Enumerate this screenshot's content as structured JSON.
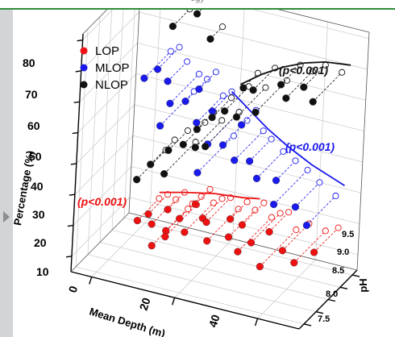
{
  "header": {
    "text": "ogy"
  },
  "chart_data": {
    "type": "scatter",
    "subtype": "3d-scatter-with-projection-lines",
    "axes": {
      "x": {
        "label": "Mean Depth (m)",
        "range": [
          -5,
          50
        ],
        "ticks": [
          "0",
          "20",
          "40"
        ],
        "tick_values": [
          0,
          20,
          40
        ]
      },
      "y": {
        "label": "pH",
        "range": [
          7.3,
          9.7
        ],
        "ticks": [
          "7.5",
          "8.0",
          "8.5",
          "9.0",
          "9.5"
        ],
        "tick_values": [
          7.5,
          8.0,
          8.5,
          9.0,
          9.5
        ]
      },
      "z": {
        "label": "Percentage (%)",
        "range": [
          5,
          82
        ],
        "ticks": [
          "10",
          "20",
          "30",
          "40",
          "50",
          "60",
          "70",
          "80"
        ],
        "tick_values": [
          10,
          20,
          30,
          40,
          50,
          60,
          70,
          80
        ]
      }
    },
    "grid": true,
    "legend": {
      "placement": "top-left",
      "entries": [
        {
          "name": "LOP",
          "color": "#ee1111"
        },
        {
          "name": "MLOP",
          "color": "#1a1aee"
        },
        {
          "name": "NLOP",
          "color": "#111111"
        }
      ]
    },
    "annotations": [
      {
        "text": "(p<0.001)",
        "series": "NLOP",
        "color": "#111111"
      },
      {
        "text": "(p<0.001)",
        "series": "MLOP",
        "color": "#1a1aee"
      },
      {
        "text": "(p<0.001)",
        "series": "LOP",
        "color": "#ee1111"
      }
    ],
    "series": [
      {
        "name": "LOP",
        "color": "#ee1111",
        "points": [
          {
            "x": 2,
            "y": 8.8,
            "z": 12
          },
          {
            "x": 4,
            "y": 8.9,
            "z": 14
          },
          {
            "x": 6,
            "y": 8.7,
            "z": 13
          },
          {
            "x": 8,
            "y": 9.0,
            "z": 16
          },
          {
            "x": 10,
            "y": 8.6,
            "z": 13
          },
          {
            "x": 12,
            "y": 8.8,
            "z": 16
          },
          {
            "x": 14,
            "y": 9.1,
            "z": 19
          },
          {
            "x": 15,
            "y": 8.5,
            "z": 15
          },
          {
            "x": 17,
            "y": 8.9,
            "z": 17
          },
          {
            "x": 19,
            "y": 8.7,
            "z": 18
          },
          {
            "x": 21,
            "y": 8.4,
            "z": 15
          },
          {
            "x": 23,
            "y": 9.0,
            "z": 18
          },
          {
            "x": 25,
            "y": 8.6,
            "z": 16
          },
          {
            "x": 27,
            "y": 8.8,
            "z": 19
          },
          {
            "x": 29,
            "y": 8.3,
            "z": 15
          },
          {
            "x": 31,
            "y": 8.5,
            "z": 17
          },
          {
            "x": 33,
            "y": 8.9,
            "z": 18
          },
          {
            "x": 35,
            "y": 8.2,
            "z": 13
          },
          {
            "x": 38,
            "y": 8.6,
            "z": 16
          },
          {
            "x": 42,
            "y": 8.4,
            "z": 15
          },
          {
            "x": 45,
            "y": 8.7,
            "z": 17
          },
          {
            "x": 11,
            "y": 8.4,
            "z": 13
          },
          {
            "x": 9,
            "y": 8.2,
            "z": 11
          }
        ]
      },
      {
        "name": "MLOP",
        "color": "#1a1aee",
        "points": [
          {
            "x": 3,
            "y": 8.6,
            "z": 60
          },
          {
            "x": 5,
            "y": 8.8,
            "z": 62
          },
          {
            "x": 7,
            "y": 8.9,
            "z": 58
          },
          {
            "x": 10,
            "y": 8.5,
            "z": 55
          },
          {
            "x": 12,
            "y": 8.8,
            "z": 54
          },
          {
            "x": 14,
            "y": 9.0,
            "z": 57
          },
          {
            "x": 16,
            "y": 8.6,
            "z": 50
          },
          {
            "x": 18,
            "y": 8.9,
            "z": 52
          },
          {
            "x": 20,
            "y": 8.4,
            "z": 46
          },
          {
            "x": 22,
            "y": 8.7,
            "z": 44
          },
          {
            "x": 24,
            "y": 9.1,
            "z": 48
          },
          {
            "x": 26,
            "y": 8.5,
            "z": 42
          },
          {
            "x": 28,
            "y": 8.8,
            "z": 40
          },
          {
            "x": 31,
            "y": 8.6,
            "z": 37
          },
          {
            "x": 34,
            "y": 8.9,
            "z": 35
          },
          {
            "x": 37,
            "y": 8.3,
            "z": 33
          },
          {
            "x": 40,
            "y": 8.7,
            "z": 30
          },
          {
            "x": 44,
            "y": 8.5,
            "z": 27
          },
          {
            "x": 9,
            "y": 8.3,
            "z": 49
          },
          {
            "x": 19,
            "y": 8.2,
            "z": 38
          }
        ]
      },
      {
        "name": "NLOP",
        "color": "#111111",
        "points": [
          {
            "x": 3,
            "y": 8.5,
            "z": 28
          },
          {
            "x": 5,
            "y": 8.7,
            "z": 32
          },
          {
            "x": 8,
            "y": 8.9,
            "z": 36
          },
          {
            "x": 10,
            "y": 8.4,
            "z": 33
          },
          {
            "x": 12,
            "y": 8.8,
            "z": 40
          },
          {
            "x": 14,
            "y": 9.0,
            "z": 44
          },
          {
            "x": 16,
            "y": 8.6,
            "z": 42
          },
          {
            "x": 18,
            "y": 8.9,
            "z": 50
          },
          {
            "x": 20,
            "y": 8.3,
            "z": 46
          },
          {
            "x": 22,
            "y": 8.7,
            "z": 55
          },
          {
            "x": 24,
            "y": 9.1,
            "z": 60
          },
          {
            "x": 26,
            "y": 8.5,
            "z": 56
          },
          {
            "x": 28,
            "y": 8.8,
            "z": 63
          },
          {
            "x": 31,
            "y": 8.4,
            "z": 60
          },
          {
            "x": 34,
            "y": 8.9,
            "z": 66
          },
          {
            "x": 37,
            "y": 8.6,
            "z": 65
          },
          {
            "x": 40,
            "y": 8.8,
            "z": 68
          },
          {
            "x": 44,
            "y": 8.5,
            "z": 67
          },
          {
            "x": 15,
            "y": 9.2,
            "z": 72
          },
          {
            "x": 7,
            "y": 9.0,
            "z": 75
          },
          {
            "x": 11,
            "y": 9.3,
            "z": 78
          }
        ]
      }
    ],
    "fits": [
      {
        "series": "NLOP",
        "color": "#111111",
        "points": [
          [
            20,
            55
          ],
          [
            25,
            60
          ],
          [
            30,
            64
          ],
          [
            35,
            67
          ],
          [
            40,
            69
          ],
          [
            46,
            70
          ]
        ]
      },
      {
        "series": "MLOP",
        "color": "#1a1aee",
        "points": [
          [
            18,
            52
          ],
          [
            22,
            48
          ],
          [
            27,
            43
          ],
          [
            32,
            39
          ],
          [
            38,
            35
          ],
          [
            46,
            31
          ]
        ]
      },
      {
        "series": "LOP",
        "color": "#ee1111",
        "points": [
          [
            2,
            14
          ],
          [
            8,
            16
          ],
          [
            15,
            18
          ],
          [
            22,
            19
          ],
          [
            26,
            20
          ]
        ]
      }
    ]
  }
}
